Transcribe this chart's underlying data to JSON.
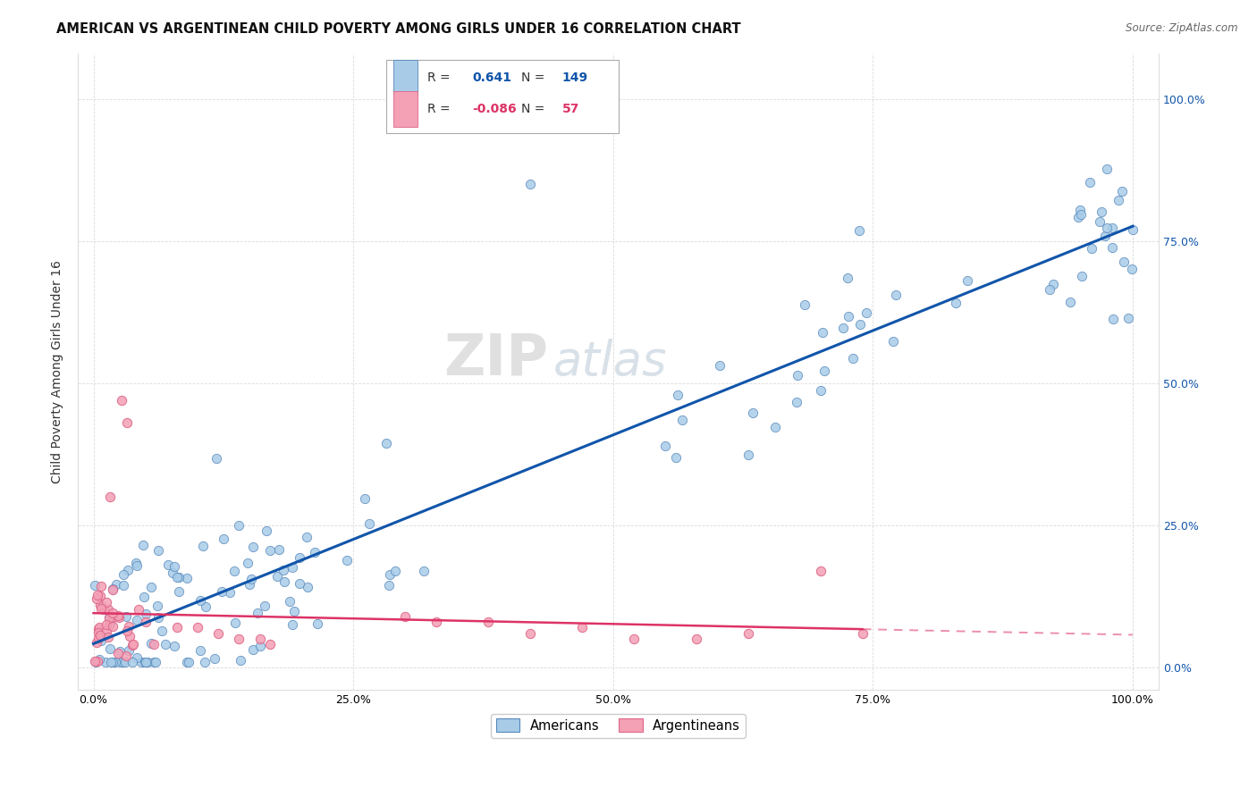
{
  "title": "AMERICAN VS ARGENTINEAN CHILD POVERTY AMONG GIRLS UNDER 16 CORRELATION CHART",
  "source": "Source: ZipAtlas.com",
  "ylabel": "Child Poverty Among Girls Under 16",
  "watermark_zip": "ZIP",
  "watermark_atlas": "atlas",
  "legend_r_blue": "0.641",
  "legend_n_blue": "149",
  "legend_r_pink": "-0.086",
  "legend_n_pink": "57",
  "legend_label_blue": "Americans",
  "legend_label_pink": "Argentineans",
  "blue_scatter_color": "#A8CCE8",
  "blue_edge_color": "#5588BB",
  "blue_line_color": "#1155AA",
  "pink_scatter_color": "#F4A0B5",
  "pink_edge_color": "#DD6688",
  "pink_line_color": "#DD3366",
  "background_color": "#FFFFFF",
  "grid_color": "#CCCCCC",
  "title_fontsize": 11,
  "axis_label_fontsize": 10,
  "tick_fontsize": 9,
  "right_tick_color": "#1155AA"
}
